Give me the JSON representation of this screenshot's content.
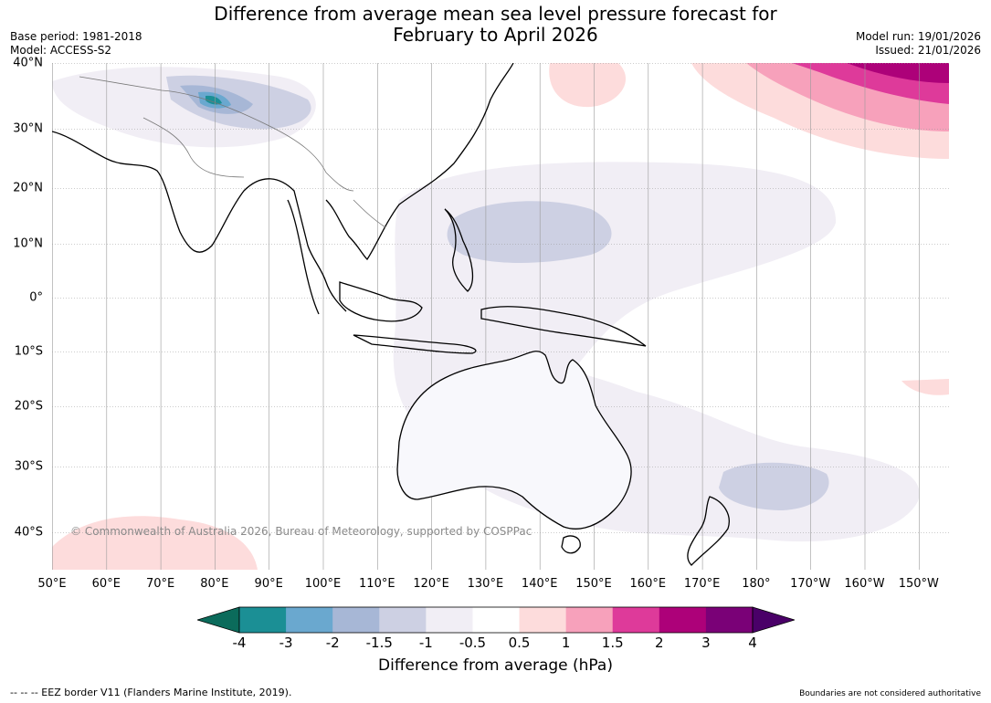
{
  "title": {
    "line1": "Difference from average mean sea level pressure forecast for",
    "line2": "February to April 2026"
  },
  "meta": {
    "base_period": "Base period: 1981-2018",
    "model": "Model: ACCESS-S2",
    "model_run": "Model run: 19/01/2026",
    "issued": "Issued: 21/01/2026"
  },
  "map": {
    "lat_labels": [
      "40°N",
      "30°N",
      "20°N",
      "10°N",
      "0°",
      "10°S",
      "20°S",
      "30°S",
      "40°S"
    ],
    "lon_labels": [
      "50°E",
      "60°E",
      "70°E",
      "80°E",
      "90°E",
      "100°E",
      "110°E",
      "120°E",
      "130°E",
      "140°E",
      "150°E",
      "160°E",
      "170°E",
      "180°",
      "170°W",
      "160°W",
      "150°W"
    ],
    "copyright": "© Commonwealth of Australia 2026, Bureau of Meteorology, supported by COSPPac"
  },
  "colorbar": {
    "ticks": [
      "-4",
      "-3",
      "-2",
      "-1.5",
      "-1",
      "-0.5",
      "0.5",
      "1",
      "1.5",
      "2",
      "3",
      "4"
    ],
    "label": "Difference from average (hPa)",
    "low_extend_color": "#0b6b5b",
    "high_extend_color": "#4a0068",
    "colors": [
      "#1b8f95",
      "#6aa8cf",
      "#a7b7d6",
      "#cdd0e3",
      "#f1eef5",
      "#ffffff",
      "#fddcdc",
      "#f7a1bb",
      "#de3a9a",
      "#ad0179",
      "#7a0177"
    ]
  },
  "footer": {
    "eez_note": "--  --  -- EEZ border V11 (Flanders Marine Institute, 2019).",
    "boundaries_note": "Boundaries are not considered authoritative"
  }
}
